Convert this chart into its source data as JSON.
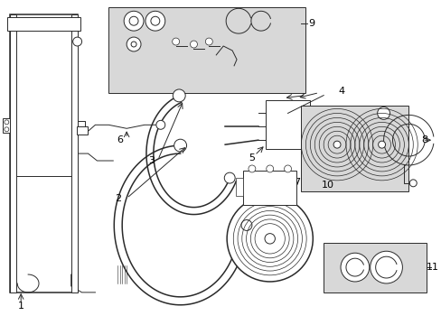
{
  "bg_color": "#ffffff",
  "line_color": "#2a2a2a",
  "label_color": "#000000",
  "box_bg": "#d8d8d8",
  "lw_thin": 0.7,
  "lw_med": 1.1,
  "lw_thick": 1.6,
  "font_size": 8
}
